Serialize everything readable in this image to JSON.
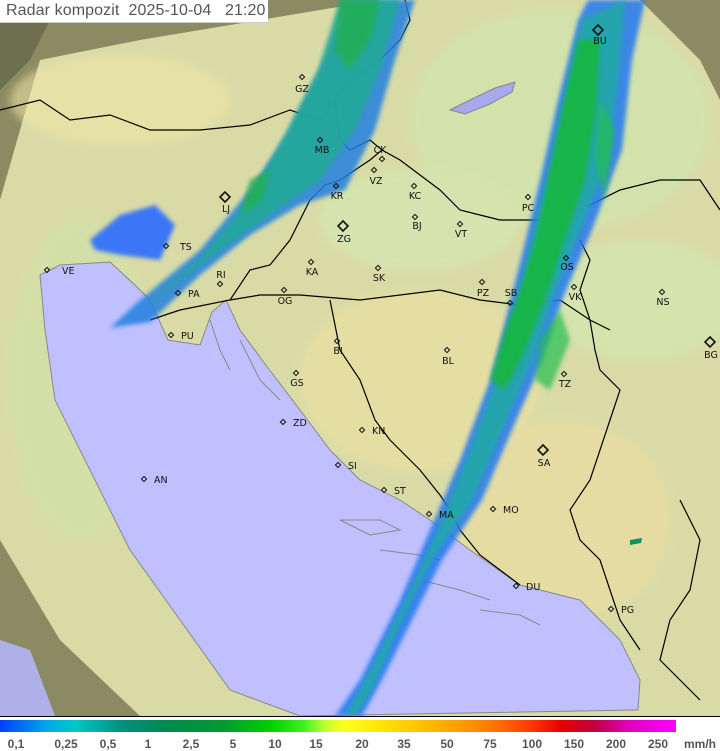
{
  "header": {
    "title": "Radar kompozit  2025-10-04   21:20"
  },
  "legend": {
    "labels": [
      "0,1",
      "0,25",
      "0,5",
      "1",
      "2,5",
      "5",
      "10",
      "15",
      "20",
      "35",
      "50",
      "75",
      "100",
      "150",
      "200",
      "250"
    ],
    "unit": "mm/h"
  },
  "colors": {
    "sea": "#c0c0ff",
    "land_coverage": "#e6eab0",
    "outside_coverage": "#8a8a60",
    "radar_light": "#2080ff",
    "radar_mid": "#20a8a0",
    "radar_heavy": "#10c030",
    "border": "#000000"
  },
  "cities": [
    {
      "name": "GZ"
    },
    {
      "name": "MB"
    },
    {
      "name": "CK"
    },
    {
      "name": "VZ"
    },
    {
      "name": "KR"
    },
    {
      "name": "KC"
    },
    {
      "name": "ZG"
    },
    {
      "name": "BJ"
    },
    {
      "name": "VT"
    },
    {
      "name": "PC"
    },
    {
      "name": "OS"
    },
    {
      "name": "VK"
    },
    {
      "name": "NS"
    },
    {
      "name": "BG"
    },
    {
      "name": "PZ"
    },
    {
      "name": "SB"
    },
    {
      "name": "LJ"
    },
    {
      "name": "TS"
    },
    {
      "name": "VE"
    },
    {
      "name": "RI"
    },
    {
      "name": "PA"
    },
    {
      "name": "PU"
    },
    {
      "name": "BI"
    },
    {
      "name": "BL"
    },
    {
      "name": "GS"
    },
    {
      "name": "TZ"
    },
    {
      "name": "ZD"
    },
    {
      "name": "KN"
    },
    {
      "name": "SA"
    },
    {
      "name": "SI"
    },
    {
      "name": "ST"
    },
    {
      "name": "MA"
    },
    {
      "name": "MO"
    },
    {
      "name": "DU"
    },
    {
      "name": "PG"
    },
    {
      "name": "AN"
    },
    {
      "name": "OG"
    },
    {
      "name": "KA"
    },
    {
      "name": "SK"
    },
    {
      "name": "BU"
    }
  ]
}
